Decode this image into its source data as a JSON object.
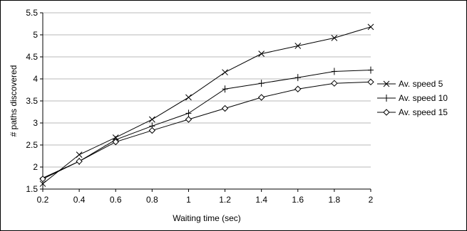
{
  "chart_data": {
    "type": "line",
    "title": "",
    "xlabel": "Waiting time (sec)",
    "ylabel": "# paths discovered",
    "x": [
      0.2,
      0.4,
      0.6,
      0.8,
      1.0,
      1.2,
      1.4,
      1.6,
      1.8,
      2.0
    ],
    "x_tick_labels": [
      "0.2",
      "0.4",
      "0.6",
      "0.8",
      "1",
      "1.2",
      "1.4",
      "1.6",
      "1.8",
      "2"
    ],
    "y_tick_labels": [
      "1.5",
      "2",
      "2.5",
      "3",
      "3.5",
      "4",
      "4.5",
      "5",
      "5.5"
    ],
    "y_ticks": [
      1.5,
      2,
      2.5,
      3,
      3.5,
      4,
      4.5,
      5,
      5.5
    ],
    "xlim": [
      0.2,
      2.0
    ],
    "ylim": [
      1.5,
      5.5
    ],
    "grid": "horizontal",
    "legend_position": "right",
    "series": [
      {
        "name": "Av. speed 5",
        "marker": "x",
        "values": [
          1.62,
          2.28,
          2.67,
          3.08,
          3.58,
          4.15,
          4.57,
          4.75,
          4.93,
          5.18
        ]
      },
      {
        "name": "Av. speed 10",
        "marker": "plus",
        "values": [
          1.75,
          2.13,
          2.62,
          2.93,
          3.22,
          3.77,
          3.9,
          4.03,
          4.17,
          4.2
        ]
      },
      {
        "name": "Av. speed 15",
        "marker": "diamond",
        "values": [
          1.73,
          2.13,
          2.57,
          2.83,
          3.08,
          3.33,
          3.58,
          3.77,
          3.9,
          3.93
        ]
      }
    ]
  }
}
